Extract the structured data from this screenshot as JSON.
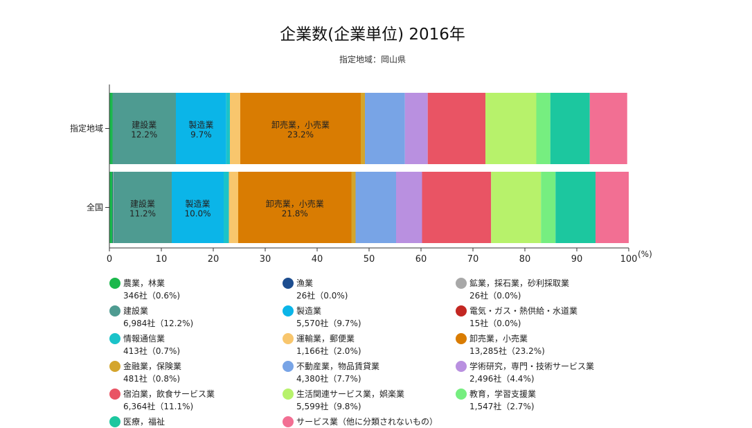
{
  "header": {
    "title": "企業数(企業単位) 2016年",
    "subtitle": "指定地域：岡山県"
  },
  "chart_data": {
    "type": "bar",
    "orientation": "horizontal",
    "stacked": true,
    "title": "企業数(企業単位) 2016年",
    "subtitle": "指定地域：岡山県",
    "xlabel": "(%)",
    "xlim": [
      0,
      100
    ],
    "xticks": [
      "0",
      "10",
      "20",
      "30",
      "40",
      "50",
      "60",
      "70",
      "80",
      "90",
      "100"
    ],
    "categories": [
      "指定地域",
      "全国"
    ],
    "series": [
      {
        "name": "農業，林業",
        "color": "#1bb84c",
        "values": [
          0.6,
          0.6
        ],
        "legend_value": "346社（0.6%)"
      },
      {
        "name": "漁業",
        "color": "#1d4d8f",
        "values": [
          0.0,
          0.1
        ],
        "legend_value": "26社（0.0%)"
      },
      {
        "name": "鉱業，採石業，砂利採取業",
        "color": "#a8a8a8",
        "values": [
          0.0,
          0.1
        ],
        "legend_value": "26社（0.0%)"
      },
      {
        "name": "建設業",
        "color": "#4e9b91",
        "values": [
          12.2,
          11.2
        ],
        "legend_value": "6,984社（12.2%)",
        "bar_labels": [
          "12.2%",
          "11.2%"
        ]
      },
      {
        "name": "製造業",
        "color": "#0bb5e8",
        "values": [
          9.7,
          10.0
        ],
        "legend_value": "5,570社（9.7%)",
        "bar_labels": [
          "9.7%",
          "10.0%"
        ]
      },
      {
        "name": "電気・ガス・熱供給・水道業",
        "color": "#c32722",
        "values": [
          0.0,
          0.0
        ],
        "legend_value": "15社（0.0%)"
      },
      {
        "name": "情報通信業",
        "color": "#1bc3c9",
        "values": [
          0.7,
          1.0
        ],
        "legend_value": "413社（0.7%)"
      },
      {
        "name": "運輸業，郵便業",
        "color": "#f8c66d",
        "values": [
          2.0,
          1.8
        ],
        "legend_value": "1,166社（2.0%)"
      },
      {
        "name": "卸売業，小売業",
        "color": "#d97c02",
        "values": [
          23.2,
          21.8
        ],
        "legend_value": "13,285社（23.2%)",
        "bar_labels": [
          "23.2%",
          "21.8%"
        ]
      },
      {
        "name": "金融業，保険業",
        "color": "#d4a52d",
        "values": [
          0.8,
          0.8
        ],
        "legend_value": "481社（0.8%)"
      },
      {
        "name": "不動産業，物品賃貸業",
        "color": "#78a4e6",
        "values": [
          7.7,
          7.8
        ],
        "legend_value": "4,380社（7.7%)"
      },
      {
        "name": "学術研究，専門・技術サービス業",
        "color": "#b990e0",
        "values": [
          4.4,
          5.0
        ],
        "legend_value": "2,496社（4.4%)"
      },
      {
        "name": "宿泊業，飲食サービス業",
        "color": "#e95464",
        "values": [
          11.1,
          13.3
        ],
        "legend_value": "6,364社（11.1%)"
      },
      {
        "name": "生活関連サービス業，娯楽業",
        "color": "#b7f26b",
        "values": [
          9.8,
          9.6
        ],
        "legend_value": "5,599社（9.8%)"
      },
      {
        "name": "教育，学習支援業",
        "color": "#76ee80",
        "values": [
          2.7,
          2.8
        ],
        "legend_value": "1,547社（2.7%)"
      },
      {
        "name": "医療，福祉",
        "color": "#1cc79f",
        "values": [
          7.6,
          7.7
        ],
        "legend_value": ""
      },
      {
        "name": "サービス業（他に分類されないもの）",
        "color": "#f26f93",
        "values": [
          7.2,
          6.4
        ],
        "legend_value": ""
      }
    ]
  }
}
